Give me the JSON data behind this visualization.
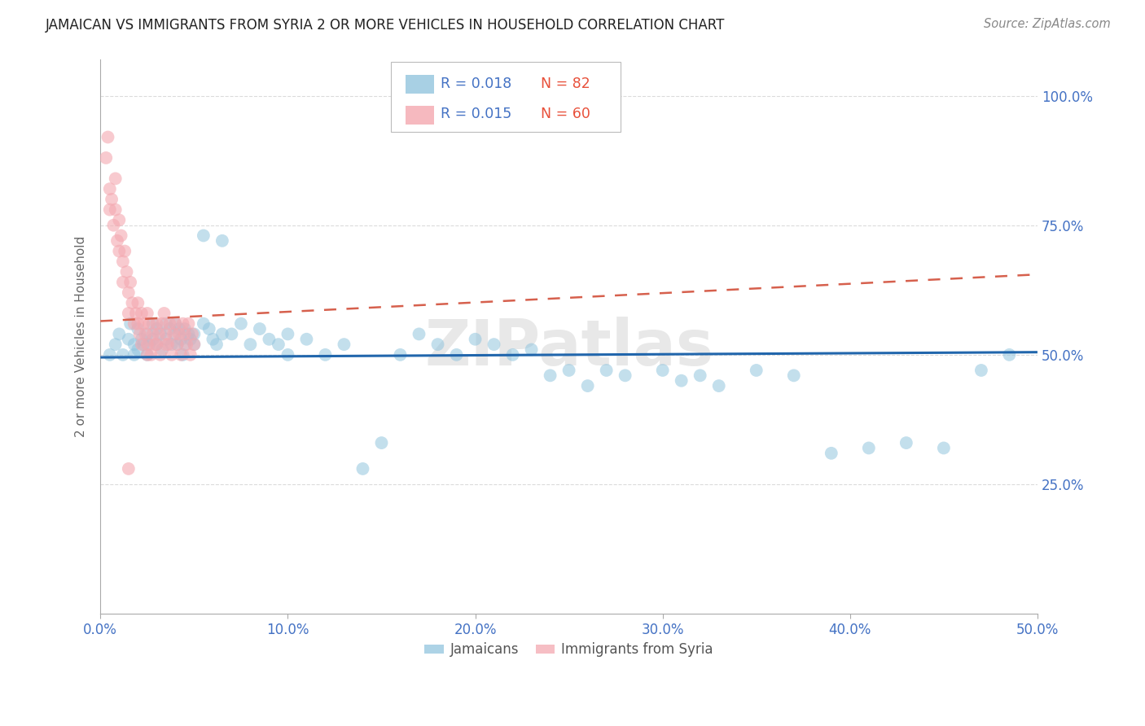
{
  "title": "JAMAICAN VS IMMIGRANTS FROM SYRIA 2 OR MORE VEHICLES IN HOUSEHOLD CORRELATION CHART",
  "source": "Source: ZipAtlas.com",
  "ylabel": "2 or more Vehicles in Household",
  "xlim": [
    0.0,
    0.5
  ],
  "ylim": [
    0.0,
    1.07
  ],
  "ytick_vals": [
    0.25,
    0.5,
    0.75,
    1.0
  ],
  "ytick_labels": [
    "25.0%",
    "50.0%",
    "75.0%",
    "100.0%"
  ],
  "xtick_vals": [
    0.0,
    0.1,
    0.2,
    0.3,
    0.4,
    0.5
  ],
  "xtick_labels": [
    "0.0%",
    "10.0%",
    "20.0%",
    "30.0%",
    "40.0%",
    "50.0%"
  ],
  "legend1_label": "Jamaicans",
  "legend2_label": "Immigrants from Syria",
  "R1": "0.018",
  "N1": "82",
  "R2": "0.015",
  "N2": "60",
  "blue_color": "#92c5de",
  "pink_color": "#f4a8b0",
  "trendline_blue": "#2166ac",
  "trendline_pink": "#d6604d",
  "blue_trendline_y0": 0.495,
  "blue_trendline_y1": 0.505,
  "pink_trendline_y0": 0.565,
  "pink_trendline_y1": 0.655,
  "watermark": "ZIPatlas",
  "blue_scatter_x": [
    0.005,
    0.008,
    0.01,
    0.012,
    0.015,
    0.016,
    0.018,
    0.018,
    0.02,
    0.02,
    0.022,
    0.023,
    0.025,
    0.025,
    0.026,
    0.028,
    0.028,
    0.03,
    0.03,
    0.032,
    0.033,
    0.035,
    0.035,
    0.037,
    0.038,
    0.04,
    0.04,
    0.041,
    0.042,
    0.043,
    0.044,
    0.045,
    0.045,
    0.047,
    0.048,
    0.05,
    0.05,
    0.055,
    0.058,
    0.06,
    0.062,
    0.065,
    0.07,
    0.075,
    0.08,
    0.085,
    0.09,
    0.095,
    0.1,
    0.1,
    0.11,
    0.12,
    0.13,
    0.14,
    0.15,
    0.16,
    0.17,
    0.18,
    0.19,
    0.2,
    0.21,
    0.22,
    0.23,
    0.24,
    0.25,
    0.26,
    0.27,
    0.28,
    0.3,
    0.31,
    0.32,
    0.33,
    0.35,
    0.37,
    0.39,
    0.41,
    0.43,
    0.45,
    0.47,
    0.485,
    0.055,
    0.065
  ],
  "blue_scatter_y": [
    0.5,
    0.52,
    0.54,
    0.5,
    0.53,
    0.56,
    0.52,
    0.5,
    0.55,
    0.51,
    0.53,
    0.52,
    0.54,
    0.5,
    0.52,
    0.56,
    0.53,
    0.55,
    0.52,
    0.54,
    0.51,
    0.56,
    0.53,
    0.55,
    0.52,
    0.56,
    0.54,
    0.52,
    0.55,
    0.53,
    0.5,
    0.55,
    0.52,
    0.54,
    0.53,
    0.54,
    0.52,
    0.56,
    0.55,
    0.53,
    0.52,
    0.54,
    0.54,
    0.56,
    0.52,
    0.55,
    0.53,
    0.52,
    0.54,
    0.5,
    0.53,
    0.5,
    0.52,
    0.28,
    0.33,
    0.5,
    0.54,
    0.52,
    0.5,
    0.53,
    0.52,
    0.5,
    0.51,
    0.46,
    0.47,
    0.44,
    0.47,
    0.46,
    0.47,
    0.45,
    0.46,
    0.44,
    0.47,
    0.46,
    0.31,
    0.32,
    0.33,
    0.32,
    0.47,
    0.5,
    0.73,
    0.72
  ],
  "pink_scatter_x": [
    0.003,
    0.004,
    0.005,
    0.005,
    0.006,
    0.007,
    0.008,
    0.008,
    0.009,
    0.01,
    0.01,
    0.011,
    0.012,
    0.012,
    0.013,
    0.014,
    0.015,
    0.015,
    0.016,
    0.017,
    0.018,
    0.019,
    0.02,
    0.02,
    0.021,
    0.022,
    0.022,
    0.023,
    0.024,
    0.025,
    0.025,
    0.026,
    0.027,
    0.028,
    0.029,
    0.03,
    0.03,
    0.031,
    0.032,
    0.033,
    0.034,
    0.035,
    0.036,
    0.037,
    0.038,
    0.039,
    0.04,
    0.041,
    0.042,
    0.043,
    0.044,
    0.045,
    0.046,
    0.047,
    0.048,
    0.049,
    0.05,
    0.015,
    0.025,
    0.035
  ],
  "pink_scatter_y": [
    0.88,
    0.92,
    0.82,
    0.78,
    0.8,
    0.75,
    0.84,
    0.78,
    0.72,
    0.76,
    0.7,
    0.73,
    0.68,
    0.64,
    0.7,
    0.66,
    0.62,
    0.58,
    0.64,
    0.6,
    0.56,
    0.58,
    0.6,
    0.56,
    0.54,
    0.58,
    0.52,
    0.56,
    0.54,
    0.58,
    0.52,
    0.56,
    0.5,
    0.54,
    0.52,
    0.56,
    0.52,
    0.54,
    0.5,
    0.56,
    0.58,
    0.54,
    0.52,
    0.56,
    0.5,
    0.54,
    0.56,
    0.52,
    0.54,
    0.5,
    0.56,
    0.54,
    0.52,
    0.56,
    0.5,
    0.54,
    0.52,
    0.28,
    0.5,
    0.52
  ],
  "grid_color": "#cccccc",
  "tick_color": "#4472c4",
  "ylabel_color": "#666666",
  "title_color": "#222222",
  "source_color": "#888888"
}
